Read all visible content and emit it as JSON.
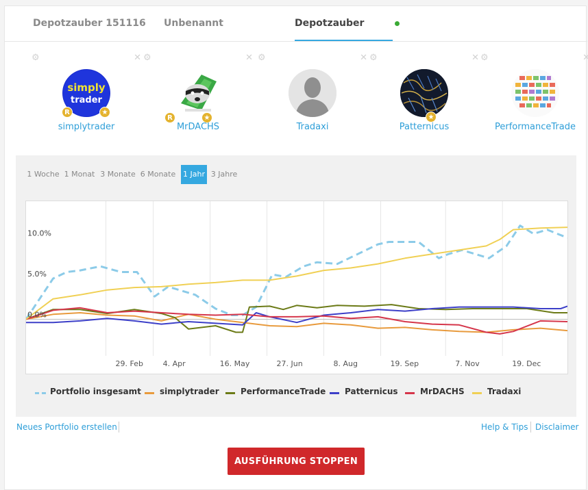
{
  "tabs": [
    {
      "label": "Depotzauber 151116",
      "active": false
    },
    {
      "label": "Unbenannt",
      "active": false
    },
    {
      "label": "Depotzauber",
      "active": true
    }
  ],
  "status_dot_color": "#3aaa35",
  "traders": [
    {
      "name": "simplytrader",
      "avatar_text_1": "simply",
      "avatar_text_2": "trader",
      "badges": [
        "R",
        "★"
      ]
    },
    {
      "name": "MrDACHS",
      "badges": [
        "R",
        "★"
      ]
    },
    {
      "name": "Tradaxi",
      "badges": []
    },
    {
      "name": "Patternicus",
      "badges": [
        "★"
      ]
    },
    {
      "name": "PerformanceTrade",
      "badges": []
    }
  ],
  "periods": [
    {
      "label": "1 Woche",
      "active": false
    },
    {
      "label": "1 Monat",
      "active": false
    },
    {
      "label": "3 Monate",
      "active": false
    },
    {
      "label": "6 Monate",
      "active": false
    },
    {
      "label": "1 Jahr",
      "active": true
    },
    {
      "label": "3 Jahre",
      "active": false
    }
  ],
  "chart_data": {
    "type": "line",
    "y_ticks": [
      "0.0%",
      "5.0%",
      "10.0%"
    ],
    "ylim": [
      -4.5,
      14.5
    ],
    "x_ticks": [
      "29. Feb",
      "4. Apr",
      "16. May",
      "27. Jun",
      "8. Aug",
      "19. Sep",
      "7. Nov",
      "19. Dec"
    ],
    "x_tick_days": [
      59,
      94,
      136,
      178,
      220,
      262,
      310,
      352
    ],
    "x_range": [
      0,
      400
    ],
    "grid": "vertical",
    "legend_position": "bottom",
    "series": [
      {
        "name": "Portfolio insgesamt",
        "color": "#8ccbe8",
        "dashed": true,
        "x": [
          0,
          10,
          20,
          30,
          40,
          55,
          70,
          82,
          95,
          105,
          115,
          125,
          140,
          152,
          160,
          170,
          182,
          192,
          205,
          215,
          230,
          245,
          260,
          268,
          278,
          290,
          305,
          312,
          322,
          332,
          342,
          355,
          365,
          375,
          385,
          400
        ],
        "y": [
          0,
          2.5,
          5,
          5.8,
          6,
          6.5,
          5.8,
          5.8,
          2.8,
          4,
          3.5,
          3,
          1.3,
          0.5,
          0.5,
          1.5,
          5.5,
          5.2,
          6.5,
          7,
          6.8,
          8,
          9.2,
          9.5,
          9.5,
          9.5,
          7.5,
          8,
          8.5,
          8,
          7.5,
          9,
          11.5,
          10.5,
          11,
          10
        ]
      },
      {
        "name": "simplytrader",
        "color": "#e89a3c",
        "dashed": false,
        "x": [
          0,
          20,
          40,
          60,
          80,
          100,
          120,
          140,
          160,
          180,
          200,
          220,
          240,
          260,
          280,
          300,
          320,
          340,
          360,
          380,
          400
        ],
        "y": [
          0,
          0.6,
          0.8,
          0.5,
          0.4,
          -0.2,
          0.6,
          0,
          -0.4,
          -0.8,
          -0.9,
          -0.5,
          -0.7,
          -1.1,
          -1,
          -1.3,
          -1.5,
          -1.6,
          -1.3,
          -1.1,
          -1.4
        ]
      },
      {
        "name": "PerformanceTrade",
        "color": "#6b7a16",
        "dashed": false,
        "x": [
          0,
          20,
          40,
          60,
          80,
          100,
          110,
          120,
          140,
          155,
          160,
          165,
          180,
          190,
          200,
          215,
          230,
          250,
          270,
          290,
          310,
          330,
          350,
          370,
          390,
          400
        ],
        "y": [
          0,
          1.2,
          1.2,
          0.7,
          1.2,
          0.7,
          0.2,
          -1.2,
          -0.8,
          -1.6,
          -1.6,
          1.5,
          1.6,
          1.2,
          1.7,
          1.4,
          1.7,
          1.6,
          1.8,
          1.3,
          1.2,
          1.3,
          1.3,
          1.3,
          0.8,
          0.8
        ]
      },
      {
        "name": "Patternicus",
        "color": "#3c3fc8",
        "dashed": false,
        "x": [
          0,
          20,
          40,
          60,
          80,
          100,
          120,
          140,
          160,
          170,
          180,
          200,
          220,
          240,
          260,
          280,
          300,
          320,
          340,
          360,
          380,
          395,
          400
        ],
        "y": [
          -0.4,
          -0.4,
          -0.2,
          0.1,
          -0.2,
          -0.6,
          -0.3,
          -0.5,
          -0.7,
          0.8,
          0.3,
          -0.4,
          0.5,
          0.8,
          1.2,
          1,
          1.3,
          1.5,
          1.5,
          1.5,
          1.3,
          1.3,
          1.6
        ]
      },
      {
        "name": "MrDACHS",
        "color": "#d5354a",
        "dashed": false,
        "x": [
          0,
          20,
          40,
          60,
          80,
          100,
          120,
          140,
          160,
          180,
          200,
          220,
          240,
          260,
          280,
          300,
          320,
          340,
          350,
          360,
          380,
          400
        ],
        "y": [
          0,
          1.1,
          1.4,
          0.8,
          1,
          0.8,
          0.6,
          0.5,
          0.6,
          0.3,
          0.3,
          0.4,
          0.1,
          0.3,
          -0.3,
          -0.6,
          -0.7,
          -1.6,
          -1.8,
          -1.5,
          -0.2,
          -0.3
        ]
      },
      {
        "name": "Tradaxi",
        "color": "#f0d054",
        "dashed": false,
        "x": [
          0,
          20,
          40,
          60,
          80,
          100,
          120,
          140,
          160,
          180,
          200,
          220,
          240,
          260,
          280,
          300,
          320,
          340,
          350,
          360,
          380,
          400
        ],
        "y": [
          0,
          2.5,
          3,
          3.6,
          3.9,
          4,
          4.3,
          4.5,
          4.8,
          4.8,
          5.3,
          6,
          6.3,
          6.8,
          7.5,
          8,
          8.5,
          9,
          9.8,
          11,
          11.2,
          11.3
        ]
      }
    ]
  },
  "footer": {
    "new_portfolio": "Neues Portfolio erstellen",
    "help": "Help & Tips",
    "disclaimer": "Disclaimer"
  },
  "stop_button": "AUSFÜHRUNG STOPPEN",
  "colors": {
    "accent": "#35a8e0",
    "link": "#2d9ed8",
    "danger": "#d0282b",
    "badge": "#e4b32f"
  }
}
